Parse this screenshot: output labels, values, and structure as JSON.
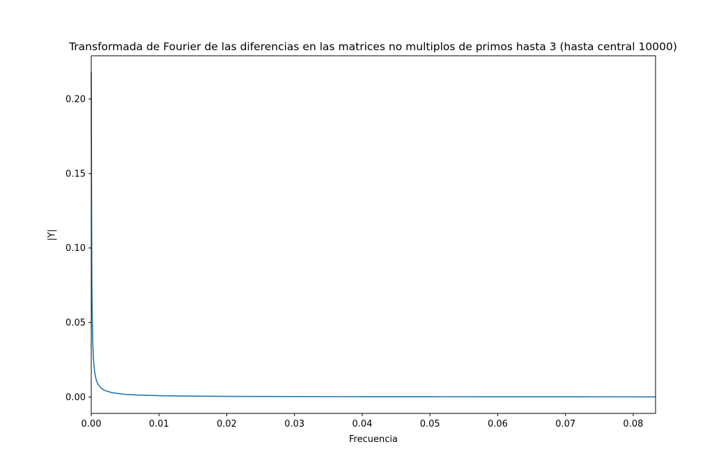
{
  "chart_data": {
    "type": "line",
    "title": "Transformada de Fourier de las diferencias en las matrices no multiplos de primos hasta 3 (hasta central 10000)",
    "xlabel": "Frecuencia",
    "ylabel": "|Y|",
    "xlim": [
      0.0,
      0.0833
    ],
    "ylim": [
      -0.011,
      0.229
    ],
    "grid": false,
    "x_ticks": [
      0.0,
      0.01,
      0.02,
      0.03,
      0.04,
      0.05,
      0.06,
      0.07,
      0.08
    ],
    "x_tick_labels": [
      "0.00",
      "0.01",
      "0.02",
      "0.03",
      "0.04",
      "0.05",
      "0.06",
      "0.07",
      "0.08"
    ],
    "y_ticks": [
      0.0,
      0.05,
      0.1,
      0.15,
      0.2
    ],
    "y_tick_labels": [
      "0.00",
      "0.05",
      "0.10",
      "0.15",
      "0.20"
    ],
    "series": [
      {
        "color": "#1f77b4",
        "x": [
          0.0,
          3e-05,
          5e-05,
          0.0001,
          0.00015,
          0.0002,
          0.0003,
          0.0004,
          0.0005,
          0.0007,
          0.001,
          0.0015,
          0.002,
          0.003,
          0.004,
          0.005,
          0.007,
          0.01,
          0.015,
          0.02,
          0.03,
          0.04,
          0.05,
          0.06,
          0.07,
          0.08,
          0.0833
        ],
        "y": [
          0.218,
          0.16,
          0.12,
          0.07,
          0.052,
          0.04,
          0.028,
          0.021,
          0.017,
          0.012,
          0.0085,
          0.0058,
          0.0044,
          0.003,
          0.0023,
          0.0018,
          0.0013,
          0.0009,
          0.0006,
          0.00045,
          0.0003,
          0.00022,
          0.00018,
          0.00015,
          0.00013,
          0.00011,
          0.0001
        ]
      }
    ]
  }
}
